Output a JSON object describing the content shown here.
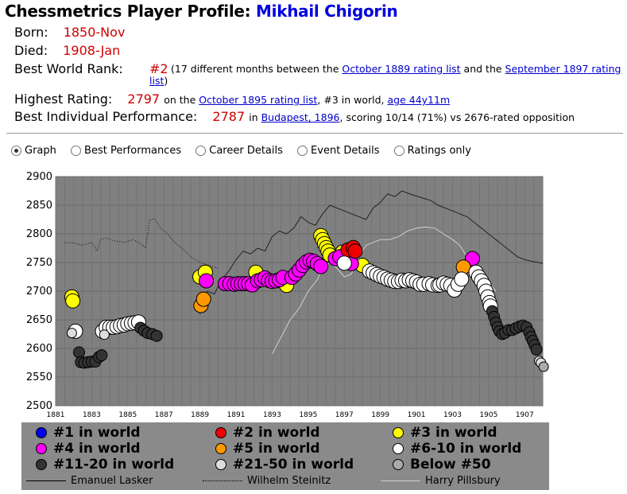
{
  "title": {
    "prefix": "Chessmetrics Player Profile:",
    "name": "Mikhail Chigorin"
  },
  "profile": {
    "born_label": "Born:",
    "born_value": "1850-Nov",
    "died_label": "Died:",
    "died_value": "1908-Jan",
    "rank_label": "Best World Rank:",
    "rank_value": "#2",
    "rank_note_a": "(17 different months between the",
    "rank_link1": "October 1889 rating list",
    "rank_note_b": "and the",
    "rank_link2a": "September 1897 rating",
    "rank_link2b": "list",
    "rank_note_c": ")",
    "rating_label": "Highest Rating:",
    "rating_value": "2797",
    "rating_note_a": "on the",
    "rating_link": "October 1895 rating list",
    "rating_note_b": ", #3 in world,",
    "rating_age": "age 44y11m",
    "perf_label": "Best Individual Performance:",
    "perf_value": "2787",
    "perf_note_a": "in",
    "perf_link": "Budapest, 1896",
    "perf_note_b": ", scoring 10/14 (71%) vs 2676-rated opposition"
  },
  "view_options": [
    {
      "label": "Graph",
      "selected": true
    },
    {
      "label": "Best Performances",
      "selected": false
    },
    {
      "label": "Career Details",
      "selected": false
    },
    {
      "label": "Event Details",
      "selected": false
    },
    {
      "label": "Ratings only",
      "selected": false
    }
  ],
  "colors": {
    "rank1": "#0000ee",
    "rank2": "#ee0000",
    "rank3": "#ffff00",
    "rank4": "#ff00ff",
    "rank5": "#ff9900",
    "rank6_10": "#ffffff",
    "rank11_20": "#333333",
    "rank21_50": "#dddddd",
    "below50": "#aaaaaa",
    "plot_bg": "#808080",
    "legend_bg": "#8a8a8a"
  },
  "legend": {
    "markers": [
      {
        "label": "#1 in world",
        "color": "#0000ee"
      },
      {
        "label": "#2 in world",
        "color": "#ee0000"
      },
      {
        "label": "#3 in world",
        "color": "#ffff00"
      },
      {
        "label": "#4 in world",
        "color": "#ff00ff"
      },
      {
        "label": "#5 in world",
        "color": "#ff9900"
      },
      {
        "label": "#6-10 in world",
        "color": "#ffffff"
      },
      {
        "label": "#11-20 in world",
        "color": "#333333"
      },
      {
        "label": "#21-50 in world",
        "color": "#dddddd"
      },
      {
        "label": "Below #50",
        "color": "#aaaaaa"
      }
    ],
    "lines": [
      {
        "label": "Emanuel Lasker",
        "style": "solid"
      },
      {
        "label": "Wilhelm Steinitz",
        "style": "dotted"
      },
      {
        "label": "Harry Pillsbury",
        "style": "solid-light"
      }
    ]
  },
  "chart_data": {
    "type": "scatter",
    "x_axis": {
      "min": 1881,
      "max": 1908,
      "tick_labels": [
        "1881",
        "1883",
        "1885",
        "1887",
        "1889",
        "1891",
        "1893",
        "1895",
        "1897",
        "1899",
        "1901",
        "1903",
        "1905",
        "1907"
      ]
    },
    "y_axis": {
      "min": 2500,
      "max": 2900,
      "tick_labels": [
        "2500",
        "2550",
        "2600",
        "2650",
        "2700",
        "2750",
        "2800",
        "2850",
        "2900"
      ]
    },
    "grid": true,
    "legend_position": "bottom",
    "series": [
      {
        "rank": "3",
        "points": [
          [
            1881.9,
            2690
          ],
          [
            1881.95,
            2683
          ],
          [
            1889.0,
            2725
          ],
          [
            1889.3,
            2733
          ],
          [
            1892.1,
            2733
          ],
          [
            1893.8,
            2710
          ],
          [
            1895.7,
            2797
          ],
          [
            1895.8,
            2790
          ],
          [
            1895.9,
            2783
          ],
          [
            1896.0,
            2776
          ],
          [
            1896.1,
            2770
          ],
          [
            1896.2,
            2763
          ],
          [
            1896.9,
            2768
          ],
          [
            1898.0,
            2745
          ]
        ]
      },
      {
        "rank": "4",
        "points": [
          [
            1889.35,
            2718
          ],
          [
            1890.4,
            2713
          ],
          [
            1890.65,
            2713
          ],
          [
            1890.9,
            2712
          ],
          [
            1891.1,
            2713
          ],
          [
            1891.3,
            2713
          ],
          [
            1891.5,
            2713
          ],
          [
            1891.7,
            2713
          ],
          [
            1891.9,
            2711
          ],
          [
            1892.2,
            2718
          ],
          [
            1892.4,
            2720
          ],
          [
            1892.6,
            2723
          ],
          [
            1892.8,
            2719
          ],
          [
            1893.0,
            2717
          ],
          [
            1893.2,
            2718
          ],
          [
            1893.4,
            2720
          ],
          [
            1893.6,
            2724
          ],
          [
            1894.1,
            2724
          ],
          [
            1894.3,
            2730
          ],
          [
            1894.5,
            2737
          ],
          [
            1894.7,
            2745
          ],
          [
            1894.9,
            2751
          ],
          [
            1895.1,
            2754
          ],
          [
            1895.3,
            2752
          ],
          [
            1895.5,
            2748
          ],
          [
            1895.7,
            2743
          ],
          [
            1896.5,
            2757
          ],
          [
            1896.75,
            2760
          ],
          [
            1897.4,
            2748
          ],
          [
            1904.1,
            2757
          ]
        ]
      },
      {
        "rank": "5",
        "points": [
          [
            1889.05,
            2675
          ],
          [
            1889.2,
            2686
          ],
          [
            1903.6,
            2742
          ]
        ]
      },
      {
        "rank": "2",
        "points": [
          [
            1897.2,
            2772
          ],
          [
            1897.5,
            2776
          ],
          [
            1897.6,
            2770
          ]
        ]
      },
      {
        "rank": "6-10",
        "points": [
          [
            1882.1,
            2630
          ],
          [
            1883.6,
            2630
          ],
          [
            1883.8,
            2637
          ],
          [
            1884.0,
            2637
          ],
          [
            1884.2,
            2637
          ],
          [
            1884.4,
            2638
          ],
          [
            1884.6,
            2640
          ],
          [
            1884.8,
            2641
          ],
          [
            1885.0,
            2643
          ],
          [
            1885.2,
            2644
          ],
          [
            1885.4,
            2645
          ],
          [
            1885.6,
            2646
          ],
          [
            1897.0,
            2749
          ],
          [
            1898.4,
            2735
          ],
          [
            1898.6,
            2732
          ],
          [
            1898.8,
            2729
          ],
          [
            1899.0,
            2726
          ],
          [
            1899.2,
            2724
          ],
          [
            1899.4,
            2721
          ],
          [
            1899.6,
            2719
          ],
          [
            1899.8,
            2717
          ],
          [
            1900.0,
            2717
          ],
          [
            1900.2,
            2719
          ],
          [
            1900.4,
            2718
          ],
          [
            1900.6,
            2720
          ],
          [
            1900.8,
            2718
          ],
          [
            1901.0,
            2716
          ],
          [
            1901.2,
            2712
          ],
          [
            1901.4,
            2712
          ],
          [
            1901.7,
            2713
          ],
          [
            1901.9,
            2711
          ],
          [
            1902.2,
            2710
          ],
          [
            1902.3,
            2711
          ],
          [
            1902.5,
            2714
          ],
          [
            1902.7,
            2712
          ],
          [
            1902.9,
            2710
          ],
          [
            1903.1,
            2702
          ],
          [
            1903.3,
            2712
          ],
          [
            1903.5,
            2721
          ],
          [
            1904.3,
            2733
          ],
          [
            1904.45,
            2725
          ],
          [
            1904.6,
            2718
          ],
          [
            1904.75,
            2710
          ],
          [
            1904.85,
            2700
          ],
          [
            1904.95,
            2690
          ],
          [
            1905.05,
            2680
          ],
          [
            1905.1,
            2674
          ]
        ]
      },
      {
        "rank": "11-20",
        "points": [
          [
            1882.3,
            2593
          ],
          [
            1882.4,
            2576
          ],
          [
            1882.6,
            2575
          ],
          [
            1882.8,
            2576
          ],
          [
            1883.0,
            2577
          ],
          [
            1883.2,
            2577
          ],
          [
            1883.4,
            2585
          ],
          [
            1883.55,
            2588
          ],
          [
            1885.7,
            2636
          ],
          [
            1885.9,
            2631
          ],
          [
            1886.1,
            2627
          ],
          [
            1886.35,
            2625
          ],
          [
            1886.6,
            2622
          ],
          [
            1905.2,
            2665
          ],
          [
            1905.3,
            2655
          ],
          [
            1905.4,
            2645
          ],
          [
            1905.5,
            2637
          ],
          [
            1905.6,
            2630
          ],
          [
            1905.75,
            2625
          ],
          [
            1905.9,
            2627
          ],
          [
            1906.1,
            2632
          ],
          [
            1906.3,
            2632
          ],
          [
            1906.5,
            2635
          ],
          [
            1906.7,
            2638
          ],
          [
            1906.9,
            2640
          ],
          [
            1907.1,
            2637
          ],
          [
            1907.25,
            2628
          ],
          [
            1907.35,
            2620
          ],
          [
            1907.45,
            2613
          ],
          [
            1907.55,
            2606
          ],
          [
            1907.65,
            2598
          ]
        ]
      },
      {
        "rank": "21-50",
        "points": [
          [
            1881.9,
            2627
          ],
          [
            1883.7,
            2624
          ],
          [
            1907.8,
            2578
          ],
          [
            1907.9,
            2575
          ]
        ]
      },
      {
        "rank": "Below 50",
        "points": [
          [
            1908.05,
            2568
          ]
        ]
      }
    ],
    "lines": [
      {
        "name": "Emanuel Lasker",
        "style": "solid",
        "points": [
          [
            1889.0,
            2660
          ],
          [
            1889.4,
            2700
          ],
          [
            1889.8,
            2695
          ],
          [
            1890.2,
            2720
          ],
          [
            1890.6,
            2735
          ],
          [
            1891.0,
            2755
          ],
          [
            1891.4,
            2770
          ],
          [
            1891.8,
            2765
          ],
          [
            1892.2,
            2775
          ],
          [
            1892.6,
            2770
          ],
          [
            1893.0,
            2795
          ],
          [
            1893.4,
            2805
          ],
          [
            1893.8,
            2800
          ],
          [
            1894.2,
            2810
          ],
          [
            1894.6,
            2830
          ],
          [
            1895.0,
            2820
          ],
          [
            1895.4,
            2815
          ],
          [
            1895.8,
            2835
          ],
          [
            1896.2,
            2850
          ],
          [
            1896.6,
            2845
          ],
          [
            1897.0,
            2840
          ],
          [
            1897.4,
            2835
          ],
          [
            1897.8,
            2830
          ],
          [
            1898.2,
            2825
          ],
          [
            1898.6,
            2845
          ],
          [
            1899.0,
            2855
          ],
          [
            1899.4,
            2870
          ],
          [
            1899.8,
            2865
          ],
          [
            1900.2,
            2875
          ],
          [
            1900.6,
            2870
          ],
          [
            1901.0,
            2866
          ],
          [
            1901.4,
            2862
          ],
          [
            1901.8,
            2858
          ],
          [
            1902.2,
            2850
          ],
          [
            1902.6,
            2845
          ],
          [
            1903.0,
            2840
          ],
          [
            1903.4,
            2835
          ],
          [
            1903.8,
            2830
          ],
          [
            1904.2,
            2820
          ],
          [
            1904.6,
            2810
          ],
          [
            1905.0,
            2800
          ],
          [
            1905.4,
            2790
          ],
          [
            1905.8,
            2780
          ],
          [
            1906.2,
            2770
          ],
          [
            1906.6,
            2760
          ],
          [
            1907.0,
            2755
          ],
          [
            1907.4,
            2752
          ],
          [
            1907.8,
            2750
          ],
          [
            1908.0,
            2748
          ]
        ]
      },
      {
        "name": "Wilhelm Steinitz",
        "style": "dotted",
        "points": [
          [
            1881.5,
            2785
          ],
          [
            1882.0,
            2784
          ],
          [
            1882.5,
            2780
          ],
          [
            1883.0,
            2785
          ],
          [
            1883.3,
            2770
          ],
          [
            1883.5,
            2790
          ],
          [
            1883.8,
            2793
          ],
          [
            1884.2,
            2788
          ],
          [
            1884.8,
            2785
          ],
          [
            1885.3,
            2790
          ],
          [
            1885.7,
            2783
          ],
          [
            1886.0,
            2775
          ],
          [
            1886.2,
            2825
          ],
          [
            1886.5,
            2826
          ],
          [
            1886.8,
            2810
          ],
          [
            1887.2,
            2800
          ],
          [
            1887.6,
            2785
          ],
          [
            1888.0,
            2775
          ],
          [
            1888.5,
            2760
          ],
          [
            1889.0,
            2750
          ],
          [
            1889.5,
            2745
          ],
          [
            1890.0,
            2740
          ]
        ]
      },
      {
        "name": "Harry Pillsbury",
        "style": "solid-light",
        "points": [
          [
            1893.0,
            2590
          ],
          [
            1893.5,
            2620
          ],
          [
            1894.0,
            2650
          ],
          [
            1894.5,
            2670
          ],
          [
            1895.0,
            2700
          ],
          [
            1895.5,
            2720
          ],
          [
            1895.8,
            2740
          ],
          [
            1896.2,
            2750
          ],
          [
            1896.6,
            2740
          ],
          [
            1897.0,
            2725
          ],
          [
            1897.4,
            2730
          ],
          [
            1897.8,
            2760
          ],
          [
            1898.2,
            2780
          ],
          [
            1898.6,
            2785
          ],
          [
            1899.0,
            2790
          ],
          [
            1899.5,
            2790
          ],
          [
            1900.0,
            2795
          ],
          [
            1900.5,
            2805
          ],
          [
            1901.0,
            2810
          ],
          [
            1901.5,
            2812
          ],
          [
            1902.0,
            2810
          ],
          [
            1902.5,
            2800
          ],
          [
            1903.0,
            2790
          ],
          [
            1903.4,
            2780
          ],
          [
            1903.8,
            2760
          ],
          [
            1904.2,
            2745
          ],
          [
            1904.6,
            2730
          ],
          [
            1905.0,
            2715
          ],
          [
            1905.4,
            2700
          ]
        ]
      }
    ]
  }
}
